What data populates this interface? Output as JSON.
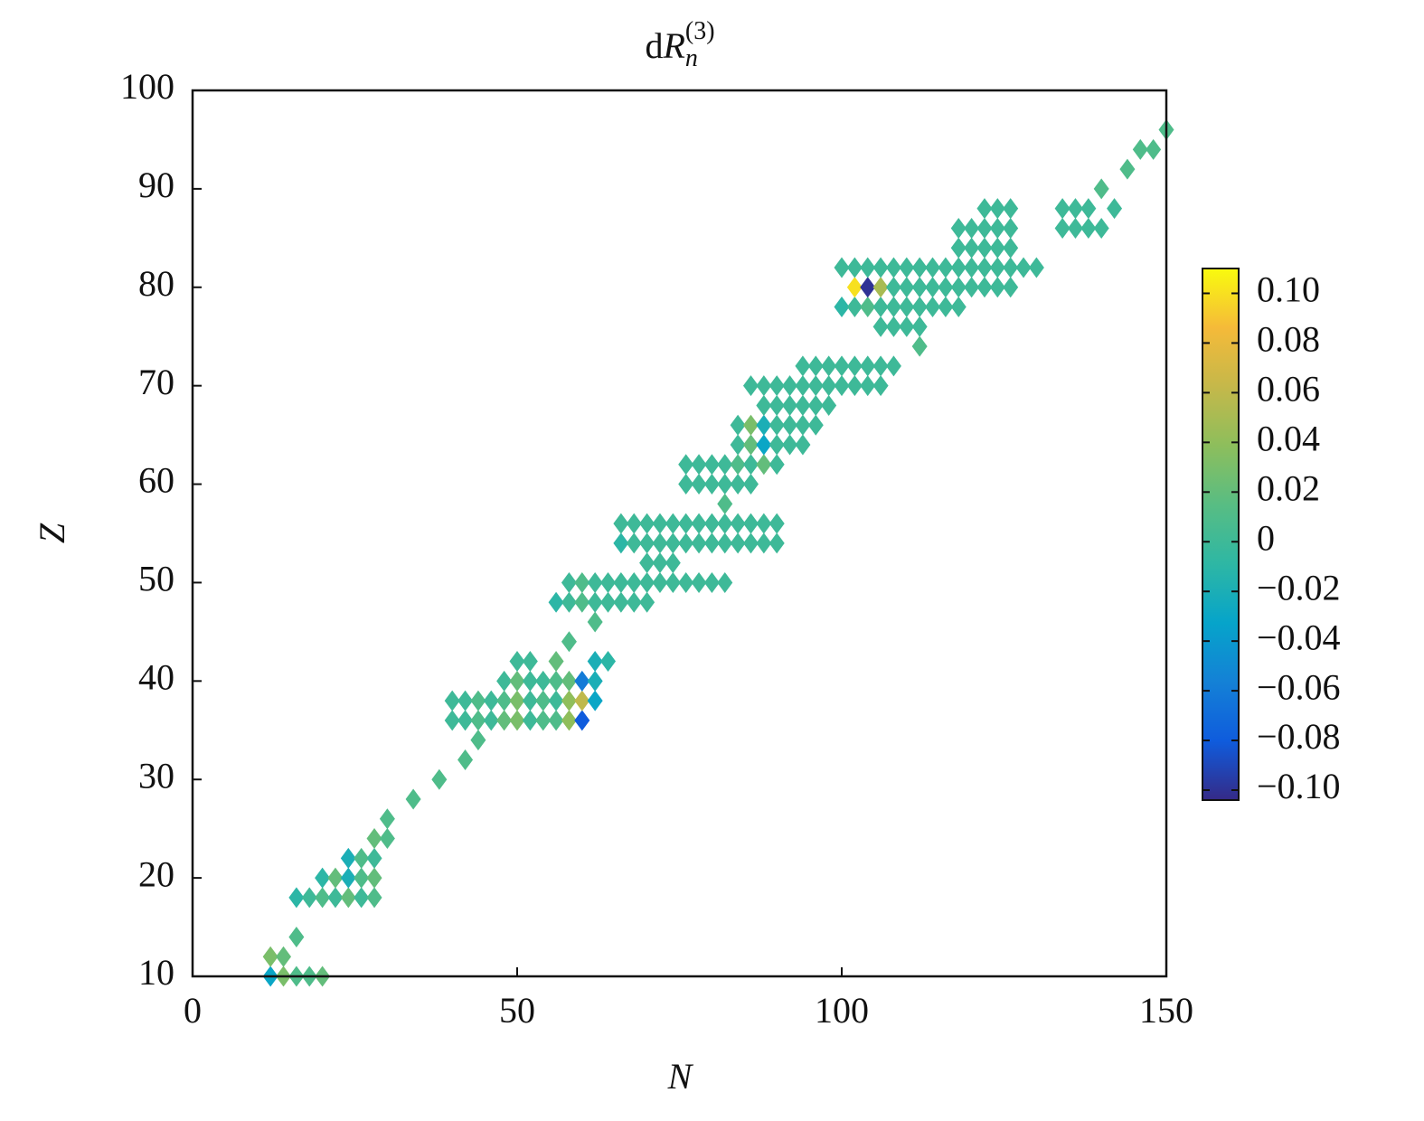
{
  "chart_data": {
    "type": "scatter",
    "title": {
      "base": "d",
      "main": "R",
      "sub": "n",
      "sup": "(3)"
    },
    "x_label": "N",
    "y_label": "Z",
    "xlim": [
      0,
      150
    ],
    "ylim": [
      10,
      100
    ],
    "xticks": [
      0,
      50,
      100,
      150
    ],
    "yticks": [
      10,
      20,
      30,
      40,
      50,
      60,
      70,
      80,
      90,
      100
    ],
    "clim": [
      -0.104,
      0.11
    ],
    "cticks": [
      {
        "value": 0.1,
        "label": "0.10"
      },
      {
        "value": 0.08,
        "label": "0.08"
      },
      {
        "value": 0.06,
        "label": "0.06"
      },
      {
        "value": 0.04,
        "label": "0.04"
      },
      {
        "value": 0.02,
        "label": "0.02"
      },
      0,
      {
        "value": -0.02,
        "label": "−0.02"
      },
      {
        "value": -0.04,
        "label": "−0.04"
      },
      {
        "value": -0.06,
        "label": "−0.06"
      },
      {
        "value": -0.08,
        "label": "−0.08"
      },
      {
        "value": -0.1,
        "label": "−0.10"
      }
    ],
    "colormap": [
      "#352a87",
      "#0f5cdd",
      "#1481d6",
      "#06a4ca",
      "#2eb7a4",
      "#58bd83",
      "#8dbe5c",
      "#c5b84a",
      "#f5ba39",
      "#f9fb0e"
    ],
    "x": [
      12,
      14,
      16,
      18,
      20,
      12,
      14,
      16,
      16,
      18,
      20,
      22,
      24,
      26,
      28,
      20,
      22,
      24,
      26,
      28,
      24,
      26,
      28,
      28,
      30,
      30,
      34,
      38,
      42,
      44,
      40,
      42,
      44,
      46,
      48,
      50,
      52,
      54,
      56,
      58,
      60,
      40,
      42,
      44,
      46,
      48,
      50,
      52,
      54,
      56,
      58,
      60,
      62,
      48,
      50,
      52,
      54,
      56,
      58,
      60,
      62,
      50,
      52,
      56,
      62,
      64,
      58,
      62,
      56,
      58,
      60,
      62,
      64,
      66,
      68,
      70,
      58,
      60,
      62,
      64,
      66,
      68,
      70,
      72,
      74,
      76,
      78,
      80,
      82,
      70,
      72,
      74,
      66,
      68,
      70,
      72,
      74,
      76,
      78,
      80,
      82,
      84,
      86,
      88,
      90,
      66,
      68,
      70,
      72,
      74,
      76,
      78,
      80,
      82,
      84,
      86,
      88,
      90,
      82,
      76,
      78,
      80,
      82,
      84,
      86,
      76,
      78,
      80,
      82,
      84,
      86,
      88,
      90,
      84,
      86,
      88,
      90,
      92,
      94,
      84,
      86,
      88,
      90,
      92,
      94,
      96,
      88,
      90,
      92,
      94,
      96,
      98,
      86,
      88,
      90,
      92,
      94,
      96,
      98,
      100,
      102,
      104,
      106,
      94,
      96,
      98,
      100,
      102,
      104,
      106,
      108,
      112,
      106,
      108,
      110,
      112,
      100,
      102,
      104,
      106,
      108,
      110,
      112,
      114,
      116,
      118,
      102,
      104,
      106,
      108,
      110,
      112,
      114,
      116,
      118,
      120,
      122,
      124,
      126,
      100,
      102,
      104,
      106,
      108,
      110,
      112,
      114,
      116,
      118,
      120,
      122,
      124,
      126,
      128,
      130,
      118,
      120,
      122,
      124,
      126,
      118,
      120,
      122,
      124,
      126,
      134,
      136,
      138,
      140,
      122,
      124,
      126,
      134,
      136,
      138,
      142,
      140,
      144,
      146,
      148,
      150
    ],
    "y": [
      10,
      10,
      10,
      10,
      10,
      12,
      12,
      14,
      18,
      18,
      18,
      18,
      18,
      18,
      18,
      20,
      20,
      20,
      20,
      20,
      22,
      22,
      22,
      24,
      24,
      26,
      28,
      30,
      32,
      34,
      36,
      36,
      36,
      36,
      36,
      36,
      36,
      36,
      36,
      36,
      36,
      38,
      38,
      38,
      38,
      38,
      38,
      38,
      38,
      38,
      38,
      38,
      38,
      40,
      40,
      40,
      40,
      40,
      40,
      40,
      40,
      42,
      42,
      42,
      42,
      42,
      44,
      46,
      48,
      48,
      48,
      48,
      48,
      48,
      48,
      48,
      50,
      50,
      50,
      50,
      50,
      50,
      50,
      50,
      50,
      50,
      50,
      50,
      50,
      52,
      52,
      52,
      54,
      54,
      54,
      54,
      54,
      54,
      54,
      54,
      54,
      54,
      54,
      54,
      54,
      56,
      56,
      56,
      56,
      56,
      56,
      56,
      56,
      56,
      56,
      56,
      56,
      56,
      58,
      60,
      60,
      60,
      60,
      60,
      60,
      62,
      62,
      62,
      62,
      62,
      62,
      62,
      62,
      64,
      64,
      64,
      64,
      64,
      64,
      66,
      66,
      66,
      66,
      66,
      66,
      66,
      68,
      68,
      68,
      68,
      68,
      68,
      70,
      70,
      70,
      70,
      70,
      70,
      70,
      70,
      70,
      70,
      70,
      72,
      72,
      72,
      72,
      72,
      72,
      72,
      72,
      74,
      76,
      76,
      76,
      76,
      78,
      78,
      78,
      78,
      78,
      78,
      78,
      78,
      78,
      78,
      80,
      80,
      80,
      80,
      80,
      80,
      80,
      80,
      80,
      80,
      80,
      80,
      80,
      82,
      82,
      82,
      82,
      82,
      82,
      82,
      82,
      82,
      82,
      82,
      82,
      82,
      82,
      82,
      82,
      84,
      84,
      84,
      84,
      84,
      86,
      86,
      86,
      86,
      86,
      86,
      86,
      86,
      86,
      88,
      88,
      88,
      88,
      88,
      88,
      88,
      90,
      92,
      94,
      94,
      96
    ],
    "values": [
      -0.03,
      0.03,
      0.01,
      0.01,
      0.02,
      0.03,
      0.02,
      0.01,
      -0.01,
      0,
      0.01,
      0,
      0.02,
      0,
      0.01,
      -0.01,
      0.02,
      -0.02,
      0.01,
      0.02,
      -0.02,
      0.01,
      0,
      0.02,
      0.01,
      0.01,
      0.01,
      0.01,
      0.01,
      0.01,
      0,
      0,
      0.01,
      0,
      0.02,
      0.03,
      0,
      0.01,
      0.01,
      0.04,
      -0.08,
      0,
      0,
      0.01,
      0,
      0.01,
      0.03,
      0,
      0.01,
      0,
      0.04,
      0.06,
      -0.03,
      0,
      0.02,
      0,
      0,
      0.01,
      0.02,
      -0.06,
      -0.02,
      0,
      0,
      0.02,
      -0.02,
      -0.01,
      0.01,
      0.01,
      -0.01,
      0,
      0.01,
      0,
      0,
      0,
      0,
      0,
      0,
      0.01,
      0,
      0,
      0,
      0,
      0,
      0,
      0,
      0,
      0,
      0,
      0,
      0,
      0,
      0,
      -0.01,
      0,
      0,
      0,
      0,
      0,
      0,
      0,
      0,
      0,
      0,
      0,
      0,
      0,
      0,
      0,
      0,
      0,
      0,
      0,
      0,
      0,
      0,
      0,
      0,
      0,
      0.01,
      0,
      0,
      0,
      0,
      0,
      0,
      0,
      0,
      0,
      0,
      0.01,
      0,
      0.02,
      0,
      0,
      0.02,
      -0.03,
      0,
      0,
      0,
      0,
      0.03,
      -0.02,
      0,
      0,
      0,
      0,
      0,
      0,
      0,
      0,
      0,
      0,
      0,
      0,
      0,
      0,
      0,
      0,
      0,
      0,
      0,
      0,
      0,
      0,
      0,
      0,
      0,
      0,
      0,
      0,
      0,
      0.01,
      0,
      0,
      0,
      0,
      -0.01,
      0,
      0.01,
      0,
      0,
      0,
      0,
      0,
      0,
      0,
      0.1,
      -0.1,
      0.05,
      0,
      0,
      0,
      0,
      0,
      0,
      0,
      0,
      0,
      0,
      0,
      0,
      0,
      0,
      0,
      0,
      0,
      0,
      0,
      0,
      0,
      0,
      0,
      0,
      0,
      0,
      0,
      0,
      0,
      0,
      0,
      0,
      0,
      0,
      0,
      0,
      0,
      0,
      0,
      0,
      0,
      0,
      0,
      0,
      0,
      0,
      0,
      0.01,
      0.01,
      0.01,
      0.01,
      0.01
    ]
  }
}
